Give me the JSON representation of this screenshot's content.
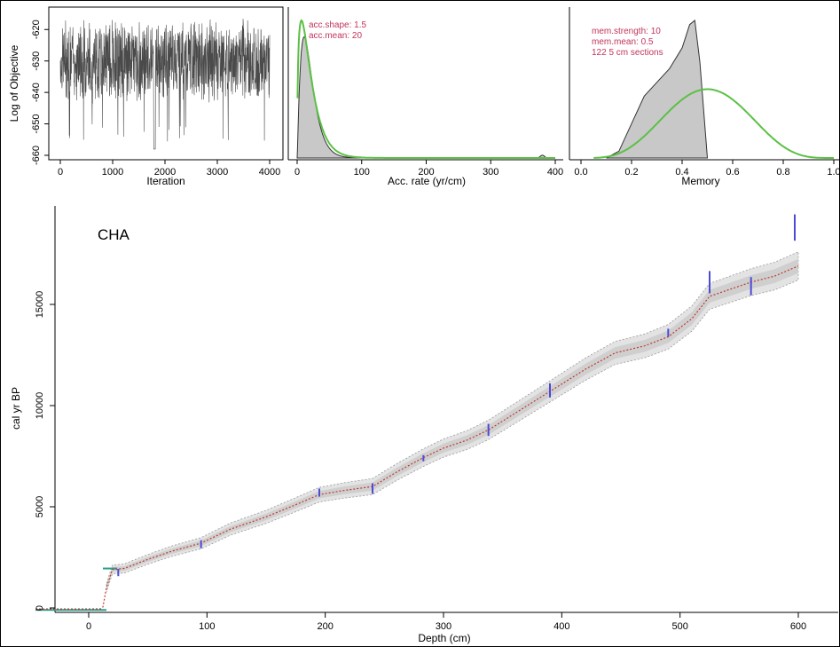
{
  "colors": {
    "trace": "#4a4a4a",
    "prior_green": "#5cc045",
    "posterior_fill": "#c8c8c8",
    "annotation": "#c2345a",
    "dates": "#4b4bd8",
    "envelope": "#bdbdbd",
    "median": "#c0392b",
    "surface": "#2a9d8f"
  },
  "chart_data": [
    {
      "type": "line",
      "panel": "iteration_trace",
      "xlabel": "Iteration",
      "ylabel": "Log of Objective",
      "xticks": [
        "0",
        "1000",
        "2000",
        "3000",
        "4000"
      ],
      "yticks": [
        "-660",
        "-650",
        "-640",
        "-630",
        "-620"
      ],
      "xlim": [
        0,
        4000
      ],
      "ylim": [
        -660,
        -614
      ],
      "series": [
        {
          "x_range": [
            0,
            4000
          ],
          "mean": -630,
          "spread": [
            -658,
            -616
          ]
        }
      ]
    },
    {
      "type": "area",
      "panel": "accumulation_rate",
      "xlabel": "Acc. rate (yr/cm)",
      "xticks": [
        "0",
        "100",
        "200",
        "300",
        "400"
      ],
      "xlim": [
        0,
        400
      ],
      "annotations": [
        "acc.shape:  1.5",
        "acc.mean:  20"
      ],
      "prior": {
        "distribution": "gamma",
        "shape": 1.5,
        "mean": 20
      },
      "posterior": {
        "peak_x": 8,
        "tail_bump_x": 380
      }
    },
    {
      "type": "area",
      "panel": "memory",
      "xlabel": "Memory",
      "xticks": [
        "0.0",
        "0.2",
        "0.4",
        "0.6",
        "0.8",
        "1.0"
      ],
      "xlim": [
        0,
        1
      ],
      "annotations": [
        "mem.strength: 10",
        "mem.mean: 0.5",
        "122 5 cm sections"
      ],
      "prior": {
        "distribution": "beta",
        "strength": 10,
        "mean": 0.5
      },
      "posterior": {
        "x": [
          0.1,
          0.15,
          0.2,
          0.25,
          0.3,
          0.35,
          0.4,
          0.43,
          0.45,
          0.47,
          0.5
        ],
        "density": [
          0,
          0.05,
          0.25,
          0.45,
          0.55,
          0.65,
          0.8,
          0.97,
          1.0,
          0.7,
          0
        ]
      }
    },
    {
      "type": "line",
      "panel": "age_depth",
      "title": "CHA",
      "xlabel": "Depth (cm)",
      "ylabel": "cal yr BP",
      "xticks": [
        "0",
        "100",
        "200",
        "300",
        "400",
        "500",
        "600"
      ],
      "yticks": [
        "0",
        "5000",
        "10000",
        "15000"
      ],
      "xlim": [
        -45,
        630
      ],
      "ylim": [
        -300,
        19500
      ],
      "median_depth": [
        -45,
        0,
        10,
        12,
        15,
        20,
        30,
        50,
        70,
        95,
        120,
        150,
        175,
        195,
        215,
        240,
        260,
        282,
        300,
        320,
        338,
        360,
        390,
        420,
        445,
        470,
        490,
        510,
        525,
        540,
        560,
        580,
        600
      ],
      "median_age": [
        -50,
        -50,
        -40,
        50,
        1000,
        1900,
        1950,
        2400,
        2800,
        3200,
        3900,
        4500,
        5100,
        5600,
        5800,
        6000,
        6700,
        7400,
        7900,
        8300,
        8800,
        9600,
        10700,
        11800,
        12600,
        12950,
        13400,
        14300,
        15400,
        15700,
        16100,
        16400,
        16900
      ],
      "dates": [
        {
          "depth": 25,
          "age": 1750,
          "err": 180
        },
        {
          "depth": 95,
          "age": 3150,
          "err": 200
        },
        {
          "depth": 195,
          "age": 5700,
          "err": 200
        },
        {
          "depth": 240,
          "age": 5900,
          "err": 260
        },
        {
          "depth": 283,
          "age": 7400,
          "err": 150
        },
        {
          "depth": 338,
          "age": 8800,
          "err": 300
        },
        {
          "depth": 390,
          "age": 10750,
          "err": 350
        },
        {
          "depth": 490,
          "age": 13600,
          "err": 200
        },
        {
          "depth": 525,
          "age": 16100,
          "err": 550
        },
        {
          "depth": 560,
          "age": 15900,
          "err": 450
        },
        {
          "depth": 597,
          "age": 18800,
          "err": 650
        }
      ],
      "surface": {
        "depth_range": [
          -45,
          15
        ],
        "age": -100
      }
    }
  ]
}
